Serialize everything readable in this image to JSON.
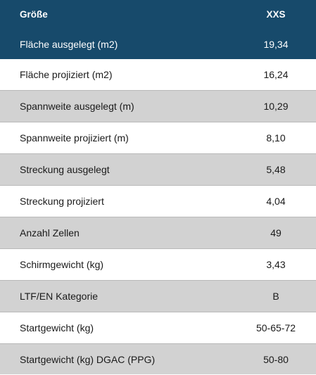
{
  "table": {
    "header": {
      "label": "Größe",
      "value": "XXS"
    },
    "rows": [
      {
        "label": "Fläche ausgelegt (m2)",
        "value": "19,34"
      },
      {
        "label": "Fläche projiziert (m2)",
        "value": "16,24"
      },
      {
        "label": "Spannweite ausgelegt (m)",
        "value": "10,29"
      },
      {
        "label": "Spannweite projiziert (m)",
        "value": "8,10"
      },
      {
        "label": "Streckung ausgelegt",
        "value": "5,48"
      },
      {
        "label": "Streckung projiziert",
        "value": "4,04"
      },
      {
        "label": "Anzahl Zellen",
        "value": "49"
      },
      {
        "label": "Schirmgewicht (kg)",
        "value": "3,43"
      },
      {
        "label": "LTF/EN Kategorie",
        "value": "B"
      },
      {
        "label": "Startgewicht (kg)",
        "value": "50-65-72"
      },
      {
        "label": "Startgewicht (kg) DGAC (PPG)",
        "value": "50-80"
      }
    ]
  },
  "colors": {
    "header_bg": "#174a6b",
    "row_shade": "#d2d2d2",
    "row_plain": "#ffffff"
  }
}
